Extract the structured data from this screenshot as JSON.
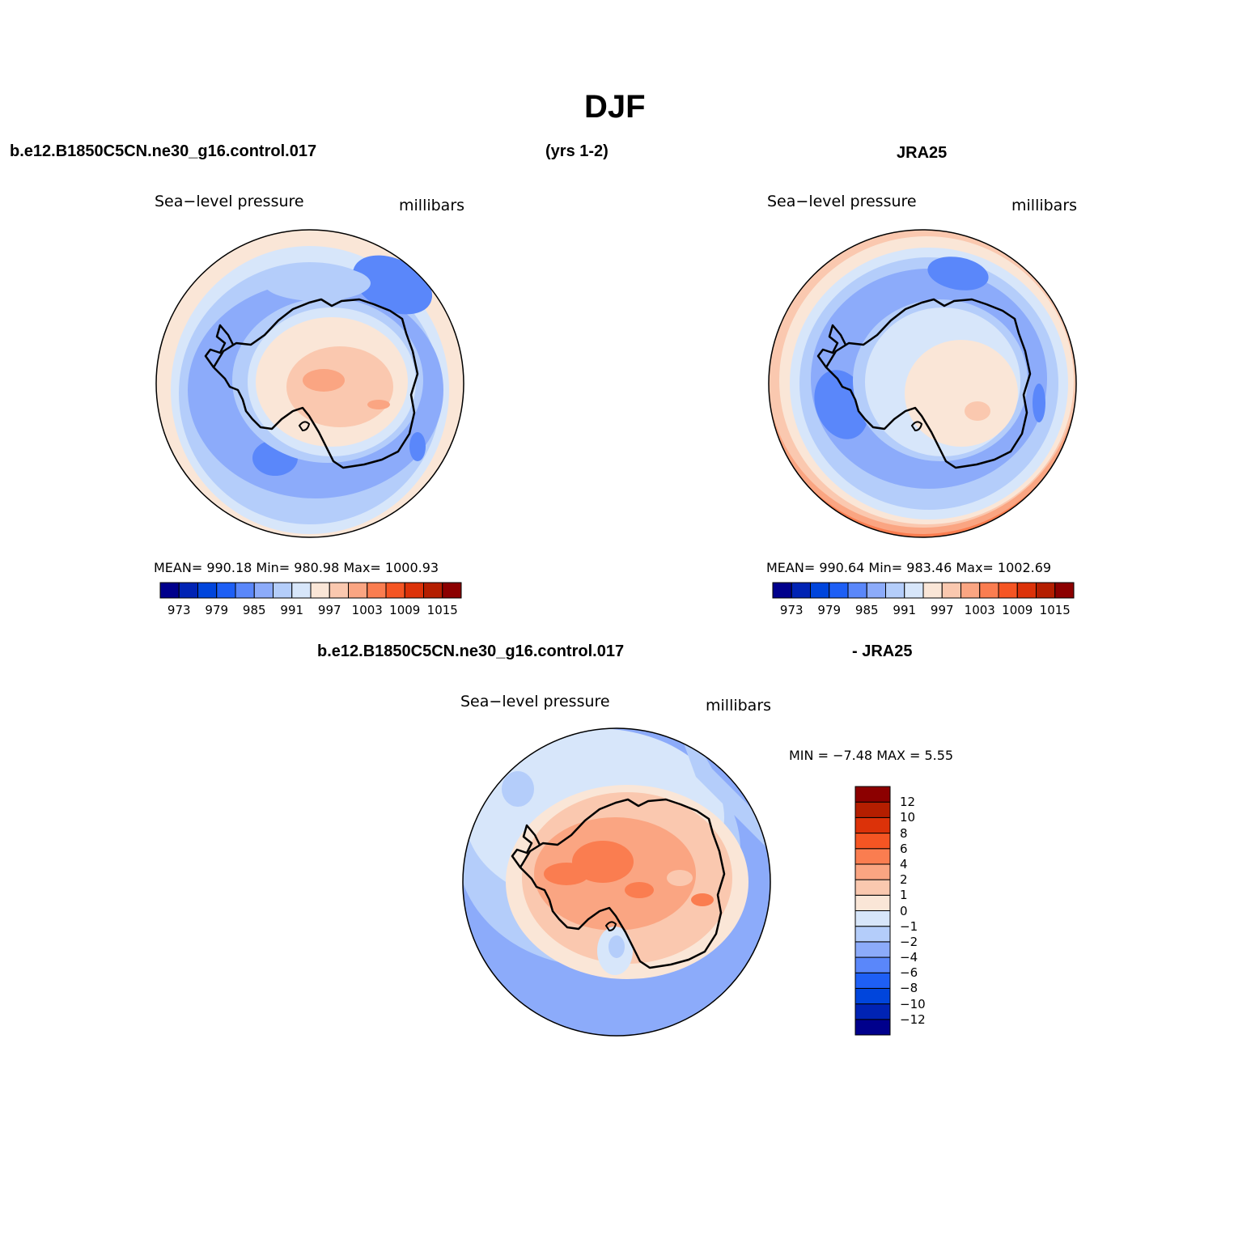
{
  "title": "DJF",
  "header": {
    "case_name": "b.e12.B1850C5CN.ne30_g16.control.017",
    "years": "(yrs 1-2)",
    "obs_name": "JRA25"
  },
  "diff_header": {
    "case_name": "b.e12.B1850C5CN.ne30_g16.control.017",
    "suffix": "- JRA25"
  },
  "panels": {
    "model": {
      "variable": "Sea−level pressure",
      "units": "millibars",
      "stats": "MEAN=  990.18    Min=  980.98    Max=  1000.93"
    },
    "obs": {
      "variable": "Sea−level pressure",
      "units": "millibars",
      "stats": "MEAN=  990.64    Min=  983.46    Max=  1002.69"
    },
    "diff": {
      "variable": "Sea−level pressure",
      "units": "millibars",
      "stats": "MIN =    −7.48  MAX =     5.55"
    }
  },
  "colorbar_abs": {
    "colors": [
      "#00008c",
      "#0023b4",
      "#0045dc",
      "#1e5ff5",
      "#5a87fa",
      "#8cabfa",
      "#b4cdfa",
      "#d7e6fa",
      "#fae6d7",
      "#fac8af",
      "#faa582",
      "#fa7d50",
      "#f55523",
      "#dc3209",
      "#b41e00",
      "#8c0000"
    ],
    "labels": [
      "973",
      "979",
      "985",
      "991",
      "997",
      "1003",
      "1009",
      "1015"
    ]
  },
  "colorbar_diff": {
    "colors": [
      "#00008c",
      "#0023b4",
      "#0045dc",
      "#1e5ff5",
      "#5a87fa",
      "#8cabfa",
      "#b4cdfa",
      "#d7e6fa",
      "#fae6d7",
      "#fac8af",
      "#faa582",
      "#fa7d50",
      "#f55523",
      "#dc3209",
      "#b41e00",
      "#8c0000"
    ],
    "labels": [
      "12",
      "10",
      "8",
      "6",
      "4",
      "2",
      "1",
      "0",
      "−1",
      "−2",
      "−4",
      "−6",
      "−8",
      "−10",
      "−12"
    ]
  }
}
